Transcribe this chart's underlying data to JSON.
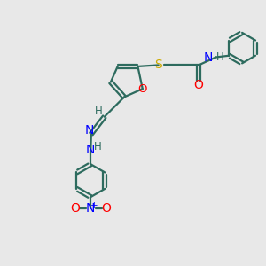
{
  "background_color": "#e8e8e8",
  "bond_color": "#2d6b5e",
  "bond_lw": 1.6,
  "N_color": "#0000ff",
  "O_color": "#ff0000",
  "S_color": "#ccaa00",
  "text_fontsize": 9.5,
  "fig_width": 3.0,
  "fig_height": 3.0,
  "dpi": 100,
  "xlim": [
    0,
    10
  ],
  "ylim": [
    0,
    10
  ]
}
